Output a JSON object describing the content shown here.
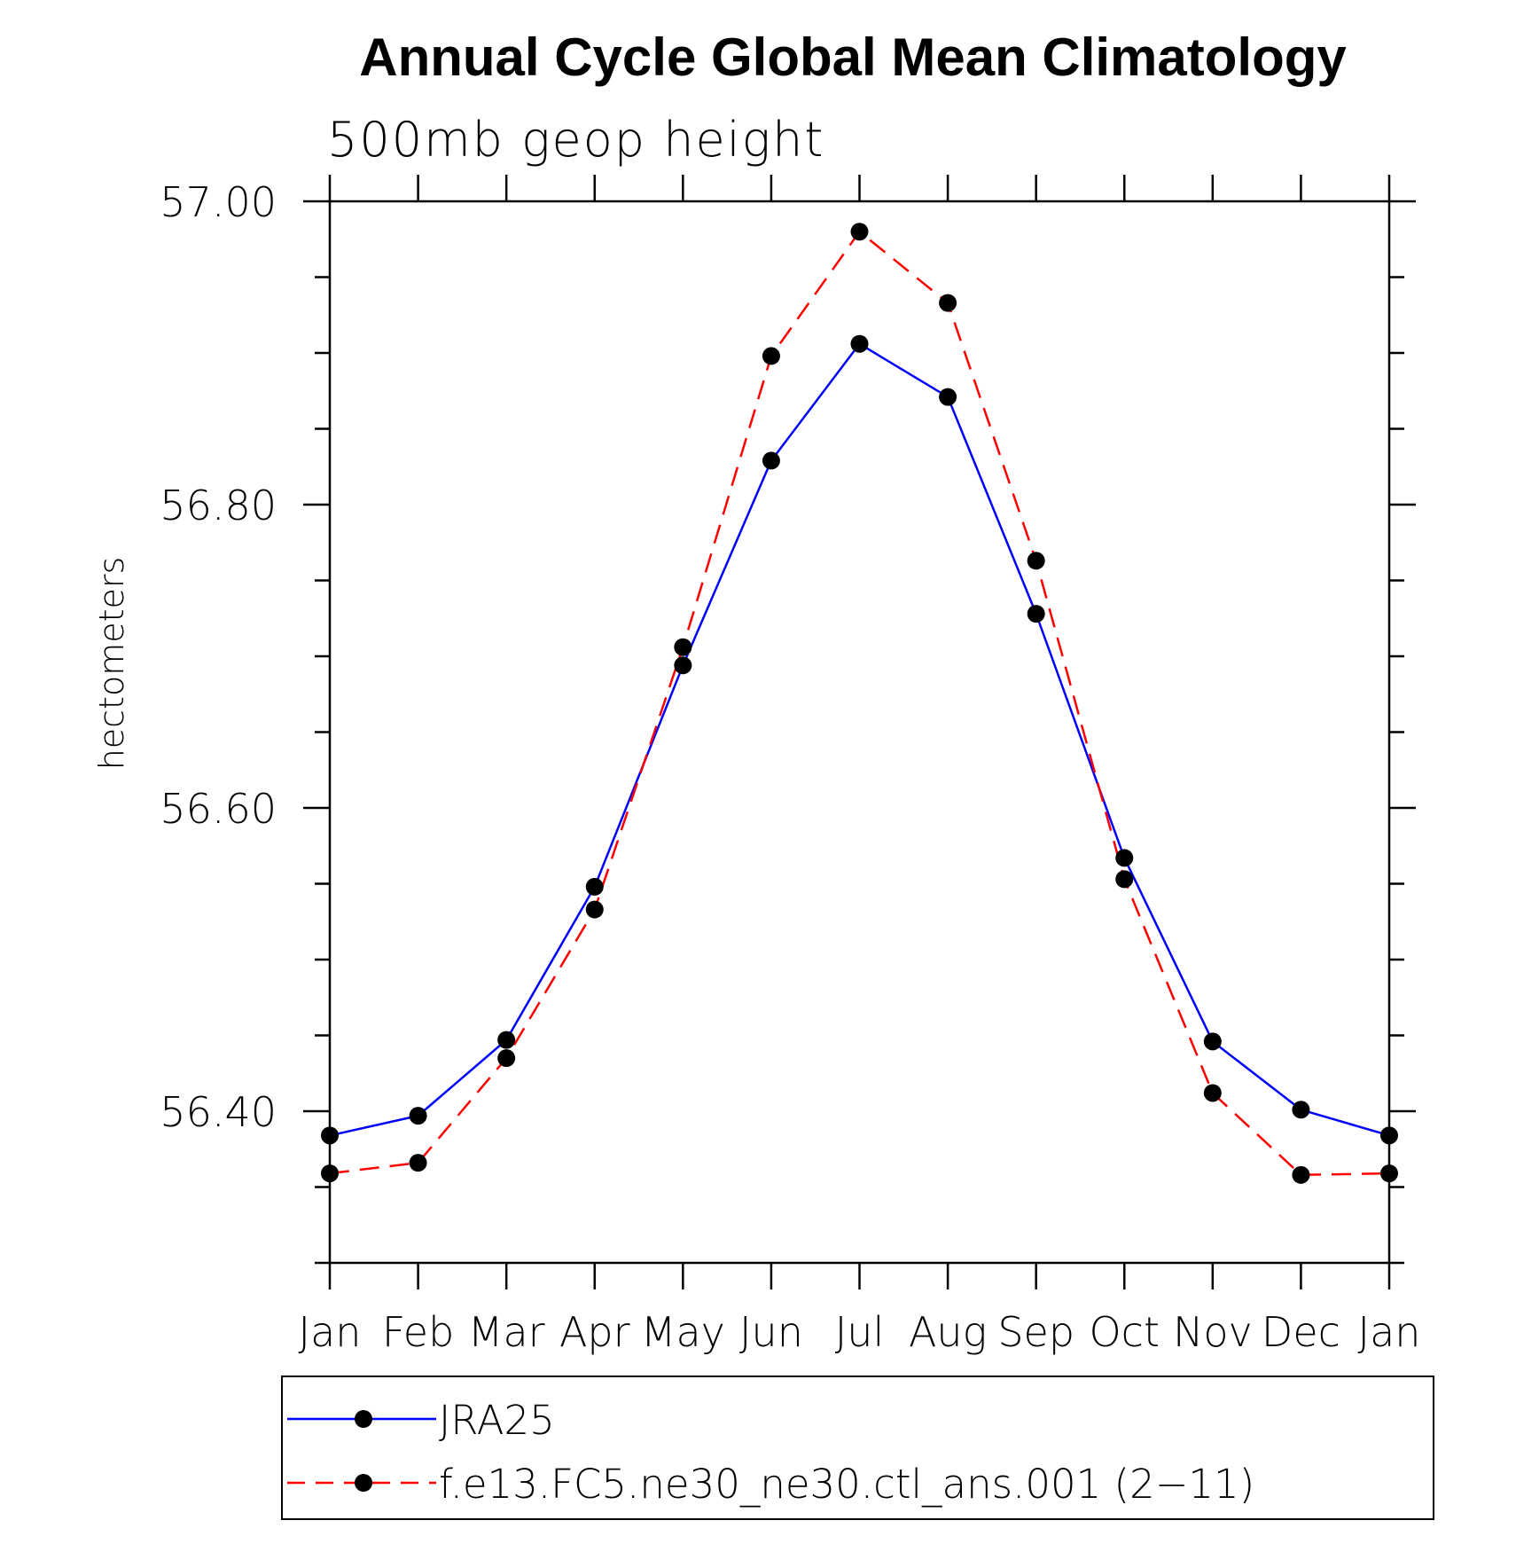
{
  "chart_data": {
    "type": "line",
    "title": "Annual Cycle Global Mean Climatology",
    "subtitle": "500mb geop height",
    "ylabel": "hectometers",
    "xlabel": "",
    "categories": [
      "Jan",
      "Feb",
      "Mar",
      "Apr",
      "May",
      "Jun",
      "Jul",
      "Aug",
      "Sep",
      "Oct",
      "Nov",
      "Dec",
      "Jan"
    ],
    "ylim": [
      56.3,
      57.0
    ],
    "y_major_ticks": [
      57.0,
      56.8,
      56.6,
      56.4
    ],
    "y_tick_labels": [
      "57.00",
      "56.80",
      "56.60",
      "56.40"
    ],
    "y_minor_step": 0.05,
    "grid": false,
    "legend_position": "bottom",
    "series": [
      {
        "name": "JRA25",
        "color": "#0000ff",
        "line_style": "solid",
        "marker": "filled-circle",
        "values": [
          56.384,
          56.397,
          56.447,
          56.548,
          56.694,
          56.829,
          56.906,
          56.871,
          56.728,
          56.567,
          56.446,
          56.401,
          56.384
        ]
      },
      {
        "name": "f.e13.FC5.ne30_ne30.ctl_ans.001 (2−11)",
        "color": "#ff0000",
        "line_style": "dashed",
        "marker": "filled-circle",
        "values": [
          56.359,
          56.366,
          56.435,
          56.533,
          56.706,
          56.898,
          56.98,
          56.933,
          56.763,
          56.553,
          56.412,
          56.358,
          56.359
        ]
      }
    ]
  }
}
